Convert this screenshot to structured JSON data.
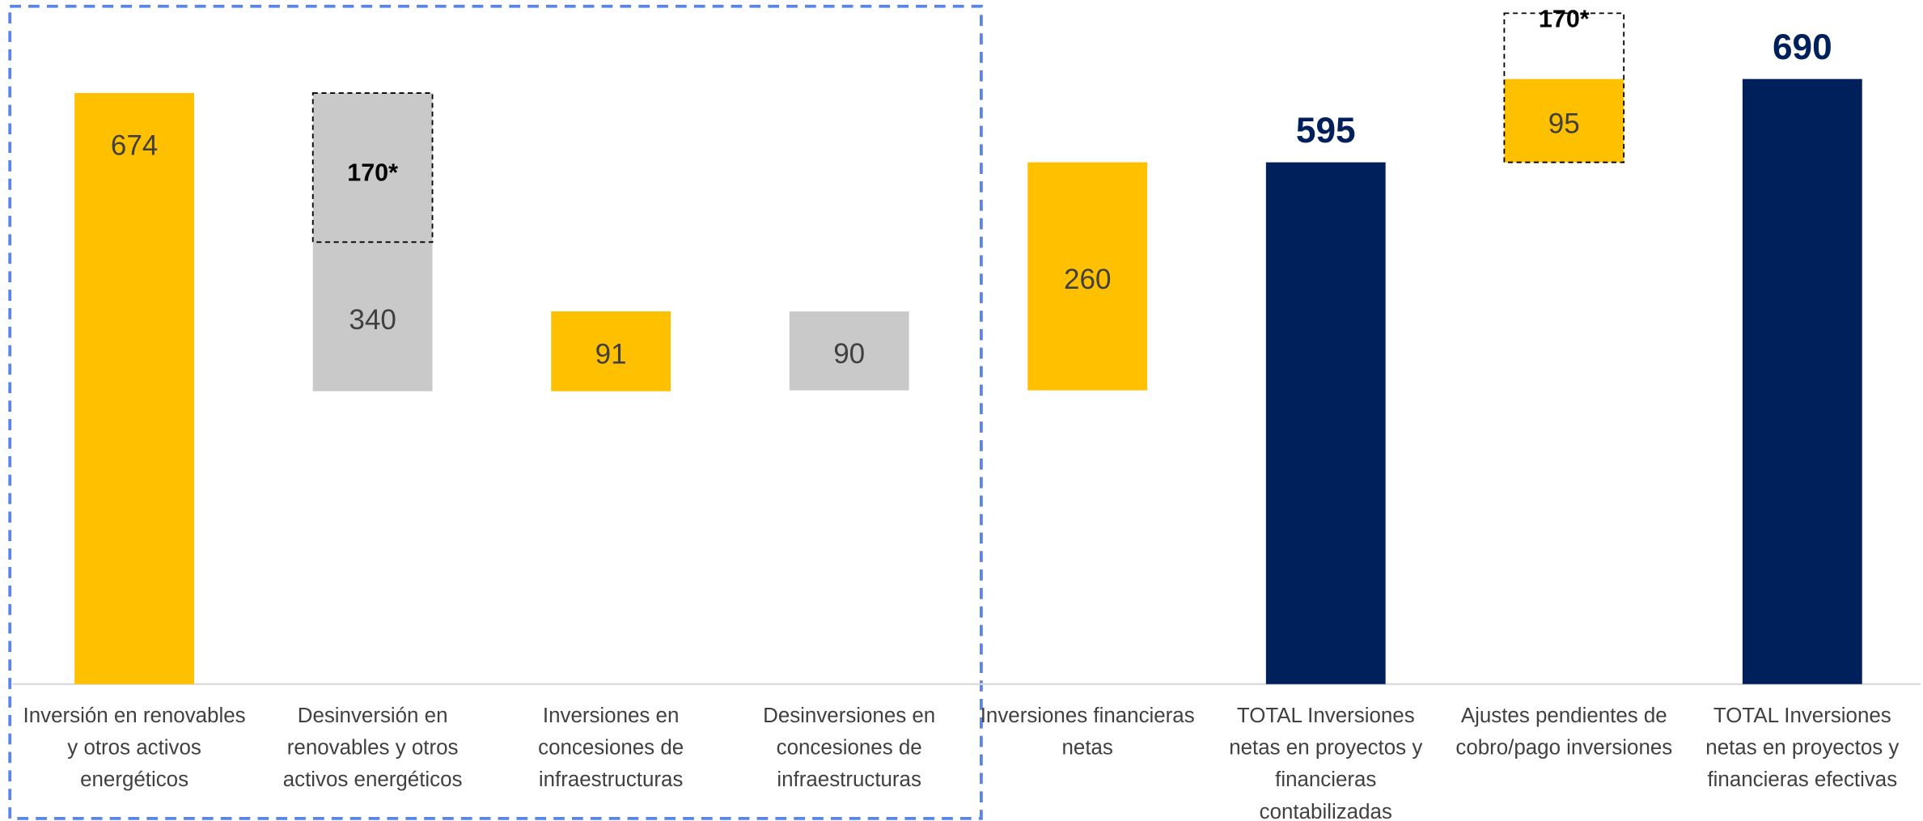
{
  "chart_data": {
    "type": "waterfall",
    "categories": [
      "Inversión en renovables y otros activos energéticos",
      "Desinversión en renovables y otros activos energéticos",
      "Inversiones en concesiones de infraestructuras",
      "Desinversiones en concesiones de infraestructuras",
      "Inversiones financieras netas",
      "TOTAL Inversiones netas en proyectos y financieras contabilizadas",
      "Ajustes pendientes de cobro/pago inversiones",
      "TOTAL Inversiones netas en proyectos y financieras efectivas"
    ],
    "values": [
      674,
      340,
      91,
      90,
      260,
      595,
      95,
      690
    ],
    "measure": [
      "absolute",
      "decrease",
      "increase",
      "decrease",
      "increase",
      "total",
      "increase",
      "total"
    ],
    "colors": [
      "#FFC000",
      "#C9C9C9",
      "#FFC000",
      "#C9C9C9",
      "#FFC000",
      "#00205B",
      "#FFC000",
      "#00205B"
    ],
    "annotations": [
      {
        "category_index": 1,
        "value": 170,
        "label": "170*"
      },
      {
        "category_index": 6,
        "value": 170,
        "label": "170*"
      }
    ],
    "ylim": [
      0,
      780
    ]
  }
}
